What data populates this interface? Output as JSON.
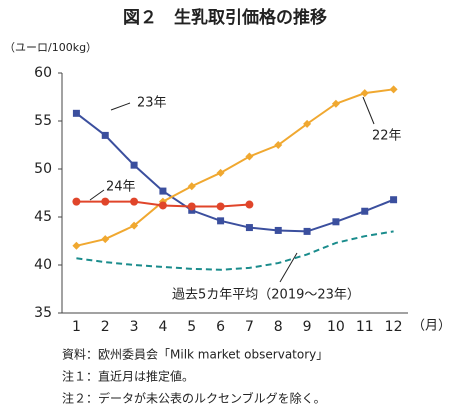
{
  "chart_data": {
    "type": "line",
    "title": "図２　生乳取引価格の推移",
    "y_label": "（ユーロ/100kg）",
    "x_label": "（月）",
    "categories": [
      "1",
      "2",
      "3",
      "4",
      "5",
      "6",
      "7",
      "8",
      "9",
      "10",
      "11",
      "12"
    ],
    "ylim": [
      35,
      60
    ],
    "yticks": [
      35,
      40,
      45,
      50,
      55,
      60
    ],
    "series": [
      {
        "name": "23年",
        "color": "#3b4f9e",
        "marker": "square",
        "values": [
          55.8,
          53.5,
          50.4,
          47.7,
          45.7,
          44.6,
          43.9,
          43.6,
          43.5,
          44.5,
          45.6,
          46.8
        ]
      },
      {
        "name": "22年",
        "color": "#f0a830",
        "marker": "diamond",
        "values": [
          42.0,
          42.7,
          44.1,
          46.6,
          48.2,
          49.6,
          51.3,
          52.5,
          54.7,
          56.8,
          57.9,
          58.3
        ]
      },
      {
        "name": "24年",
        "color": "#e0452a",
        "marker": "circle",
        "values": [
          46.6,
          46.6,
          46.6,
          46.2,
          46.1,
          46.1,
          46.3,
          null,
          null,
          null,
          null,
          null
        ]
      },
      {
        "name": "過去5カ年平均（2019～23年）",
        "color": "#1a8c8c",
        "marker": "none",
        "dashed": true,
        "values": [
          40.7,
          40.3,
          40.0,
          39.8,
          39.6,
          39.5,
          39.7,
          40.2,
          41.1,
          42.3,
          43.0,
          43.5
        ]
      }
    ],
    "notes": [
      "資料：欧州委員会「Milk market observatory」",
      "注１：直近月は推定値。",
      "注２：データが未公表のルクセンブルグを除く。"
    ]
  }
}
